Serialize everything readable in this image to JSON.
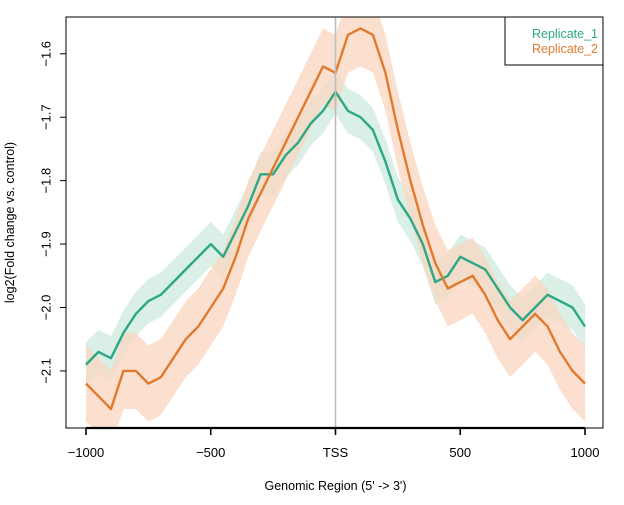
{
  "chart_data": {
    "type": "line",
    "xlabel": "Genomic Region (5' -> 3')",
    "ylabel": "log2(Fold change vs. control)",
    "xlim": [
      -1000,
      1000
    ],
    "ylim": [
      -2.19,
      -1.542
    ],
    "x_ticks": [
      {
        "value": -1000,
        "label": "−1000"
      },
      {
        "value": -500,
        "label": "−500"
      },
      {
        "value": 0,
        "label": "TSS"
      },
      {
        "value": 500,
        "label": "500"
      },
      {
        "value": 1000,
        "label": "1000"
      }
    ],
    "y_ticks": [
      {
        "value": -1.6,
        "label": "−1.6"
      },
      {
        "value": -1.7,
        "label": "−1.7"
      },
      {
        "value": -1.8,
        "label": "−1.8"
      },
      {
        "value": -1.9,
        "label": "−1.9"
      },
      {
        "value": -2.0,
        "label": "−2.0"
      },
      {
        "value": -2.1,
        "label": "−2.1"
      }
    ],
    "vline": {
      "x": 0,
      "color": "#bdbdbd"
    },
    "legend_position": "top-right",
    "grid": false,
    "series": [
      {
        "name": "Replicate_1",
        "color": "#2ca884",
        "band_color": "#cde9dd",
        "band_halfwidth": 0.035,
        "x": [
          -1000,
          -950,
          -900,
          -850,
          -800,
          -750,
          -700,
          -650,
          -600,
          -550,
          -500,
          -450,
          -400,
          -350,
          -300,
          -250,
          -200,
          -150,
          -100,
          -50,
          0,
          50,
          100,
          150,
          200,
          250,
          300,
          350,
          400,
          450,
          500,
          550,
          600,
          650,
          700,
          750,
          800,
          850,
          900,
          950,
          1000
        ],
        "y": [
          -2.09,
          -2.07,
          -2.08,
          -2.04,
          -2.01,
          -1.99,
          -1.98,
          -1.96,
          -1.94,
          -1.92,
          -1.9,
          -1.92,
          -1.88,
          -1.84,
          -1.79,
          -1.79,
          -1.76,
          -1.74,
          -1.71,
          -1.69,
          -1.66,
          -1.69,
          -1.7,
          -1.72,
          -1.77,
          -1.83,
          -1.86,
          -1.9,
          -1.96,
          -1.95,
          -1.92,
          -1.93,
          -1.94,
          -1.97,
          -2.0,
          -2.02,
          -2.0,
          -1.98,
          -1.99,
          -2.0,
          -2.03
        ]
      },
      {
        "name": "Replicate_2",
        "color": "#e07a2e",
        "band_color": "#f9d6c0",
        "band_halfwidth": 0.06,
        "x": [
          -1000,
          -950,
          -900,
          -850,
          -800,
          -750,
          -700,
          -650,
          -600,
          -550,
          -500,
          -450,
          -400,
          -350,
          -300,
          -250,
          -200,
          -150,
          -100,
          -50,
          0,
          50,
          100,
          150,
          200,
          250,
          300,
          350,
          400,
          450,
          500,
          550,
          600,
          650,
          700,
          750,
          800,
          850,
          900,
          950,
          1000
        ],
        "y": [
          -2.12,
          -2.14,
          -2.16,
          -2.1,
          -2.1,
          -2.12,
          -2.11,
          -2.08,
          -2.05,
          -2.03,
          -2.0,
          -1.97,
          -1.92,
          -1.86,
          -1.82,
          -1.78,
          -1.74,
          -1.7,
          -1.66,
          -1.62,
          -1.63,
          -1.57,
          -1.56,
          -1.57,
          -1.63,
          -1.72,
          -1.8,
          -1.87,
          -1.93,
          -1.97,
          -1.96,
          -1.95,
          -1.98,
          -2.02,
          -2.05,
          -2.03,
          -2.01,
          -2.03,
          -2.07,
          -2.1,
          -2.12
        ]
      }
    ]
  }
}
